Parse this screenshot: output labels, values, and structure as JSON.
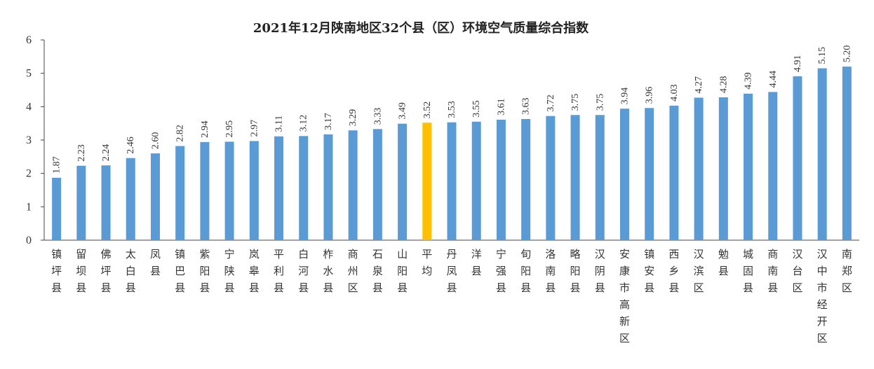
{
  "chart_data": {
    "type": "bar",
    "title": "2021年12月陕南地区32个县（区）环境空气质量综合指数",
    "categories": [
      "镇坪县",
      "留坝县",
      "佛坪县",
      "太白县",
      "凤县",
      "镇巴县",
      "紫阳县",
      "宁陕县",
      "岚皋县",
      "平利县",
      "白河县",
      "柞水县",
      "商州区",
      "石泉县",
      "山阳县",
      "平均",
      "丹凤县",
      "洋县",
      "宁强县",
      "旬阳县",
      "洛南县",
      "略阳县",
      "汉阴县",
      "安康市高新区",
      "镇安县",
      "西乡县",
      "汉滨区",
      "勉县",
      "城固县",
      "商南县",
      "汉台区",
      "汉中市经开区",
      "南郑区"
    ],
    "values": [
      1.87,
      2.23,
      2.24,
      2.46,
      2.6,
      2.82,
      2.94,
      2.95,
      2.97,
      3.11,
      3.12,
      3.17,
      3.29,
      3.33,
      3.49,
      3.52,
      3.53,
      3.55,
      3.61,
      3.63,
      3.72,
      3.75,
      3.75,
      3.94,
      3.96,
      4.03,
      4.27,
      4.28,
      4.39,
      4.44,
      4.91,
      5.15,
      5.2
    ],
    "value_labels": [
      "1.87",
      "2.23",
      "2.24",
      "2.46",
      "2.60",
      "2.82",
      "2.94",
      "2.95",
      "2.97",
      "3.11",
      "3.12",
      "3.17",
      "3.29",
      "3.33",
      "3.49",
      "3.52",
      "3.53",
      "3.55",
      "3.61",
      "3.63",
      "3.72",
      "3.75",
      "3.75",
      "3.94",
      "3.96",
      "4.03",
      "4.27",
      "4.28",
      "4.39",
      "4.44",
      "4.91",
      "5.15",
      "5.20"
    ],
    "yticks": [
      "0",
      "1",
      "2",
      "3",
      "4",
      "5",
      "6"
    ],
    "ylim": [
      0,
      6
    ],
    "highlight_category": "平均",
    "bar_color": "#5b9bd5",
    "highlight_color": "#ffc000",
    "xlabel": "",
    "ylabel": "",
    "grid": false,
    "legend": false
  }
}
